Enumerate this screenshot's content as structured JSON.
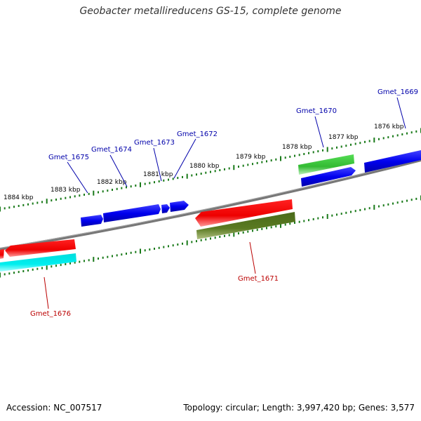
{
  "title": "Geobacter metallireducens GS-15, complete genome",
  "footer": {
    "accession": "Accession: NC_007517",
    "summary": "Topology: circular; Length: 3,997,420 bp; Genes: 3,577"
  },
  "colors": {
    "backbone": "#808080",
    "tick": "#1a7a1a",
    "label_forward": "#0000aa",
    "label_reverse": "#bb0000"
  },
  "tick_labels": [
    "1884 kbp",
    "1883 kbp",
    "1882 kbp",
    "1881 kbp",
    "1880 kbp",
    "1879 kbp",
    "1878 kbp",
    "1877 kbp",
    "1876 kbp"
  ],
  "genes_forward": [
    {
      "name": "Gmet_1669",
      "color": "#0000ee"
    },
    {
      "name": "Gmet_1670",
      "color": "#33cc33"
    },
    {
      "name": "Gmet_1672",
      "color": "#0000ee"
    },
    {
      "name": "Gmet_1673",
      "color": "#0000ee"
    },
    {
      "name": "Gmet_1674",
      "color": "#0000ee"
    },
    {
      "name": "Gmet_1675",
      "color": "#0000ee"
    }
  ],
  "genes_reverse": [
    {
      "name": "Gmet_1671",
      "color": "#ee0000"
    },
    {
      "name": "Gmet_1676",
      "color": "#ee0000"
    }
  ]
}
